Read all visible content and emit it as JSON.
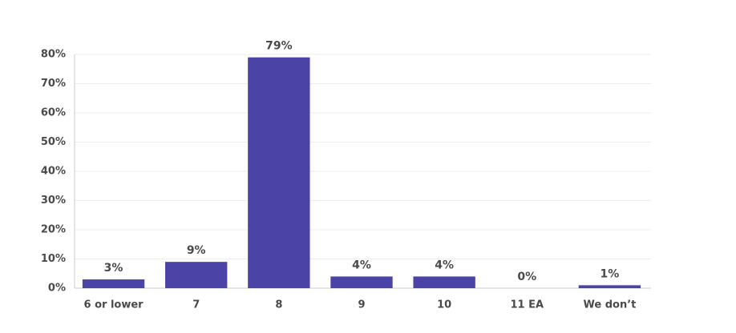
{
  "chart_data": {
    "type": "bar",
    "categories": [
      "6 or lower",
      "7",
      "8",
      "9",
      "10",
      "11 EA",
      "We don’t"
    ],
    "values": [
      3,
      9,
      79,
      4,
      4,
      0,
      1
    ],
    "value_labels": [
      "3%",
      "9%",
      "79%",
      "4%",
      "4%",
      "0%",
      "1%"
    ],
    "color": "#4b44a6",
    "ylim": [
      0,
      80
    ],
    "yticks": [
      {
        "value": 0,
        "label": "0%"
      },
      {
        "value": 10,
        "label": "10%"
      },
      {
        "value": 20,
        "label": "20%"
      },
      {
        "value": 30,
        "label": "30%"
      },
      {
        "value": 40,
        "label": "40%"
      },
      {
        "value": 50,
        "label": "50%"
      },
      {
        "value": 60,
        "label": "60%"
      },
      {
        "value": 70,
        "label": "70%"
      },
      {
        "value": 80,
        "label": "80%"
      }
    ],
    "grid": true
  }
}
